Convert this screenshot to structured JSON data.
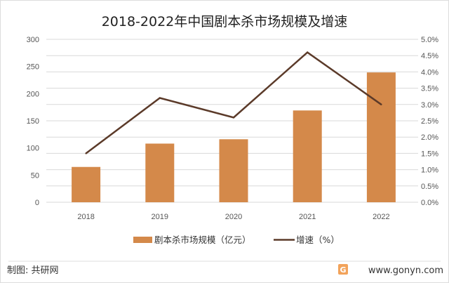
{
  "chart_data": {
    "type": "bar",
    "title": "2018-2022年中国剧本杀市场规模及增速",
    "categories": [
      "2018",
      "2019",
      "2020",
      "2021",
      "2022"
    ],
    "series": [
      {
        "name": "剧本杀市场规模（亿元）",
        "type": "bar",
        "axis": "left",
        "color": "#D4894A",
        "values": [
          65,
          108,
          116,
          169,
          239
        ]
      },
      {
        "name": "增速（%）",
        "type": "line",
        "axis": "right",
        "color": "#5B3A29",
        "values": [
          1.5,
          3.2,
          2.6,
          4.6,
          3.0
        ]
      }
    ],
    "ylim": [
      0,
      300
    ],
    "yticks": [
      "0",
      "50",
      "100",
      "150",
      "200",
      "250",
      "300"
    ],
    "y2lim": [
      0,
      5
    ],
    "y2ticks": [
      "0.0%",
      "0.5%",
      "1.0%",
      "1.5%",
      "2.0%",
      "2.5%",
      "3.0%",
      "3.5%",
      "4.0%",
      "4.5%",
      "5.0%"
    ],
    "grid": true,
    "legend_position": "bottom"
  },
  "footer": {
    "source": "制图: 共研网",
    "website": "www.gonyn.com"
  }
}
